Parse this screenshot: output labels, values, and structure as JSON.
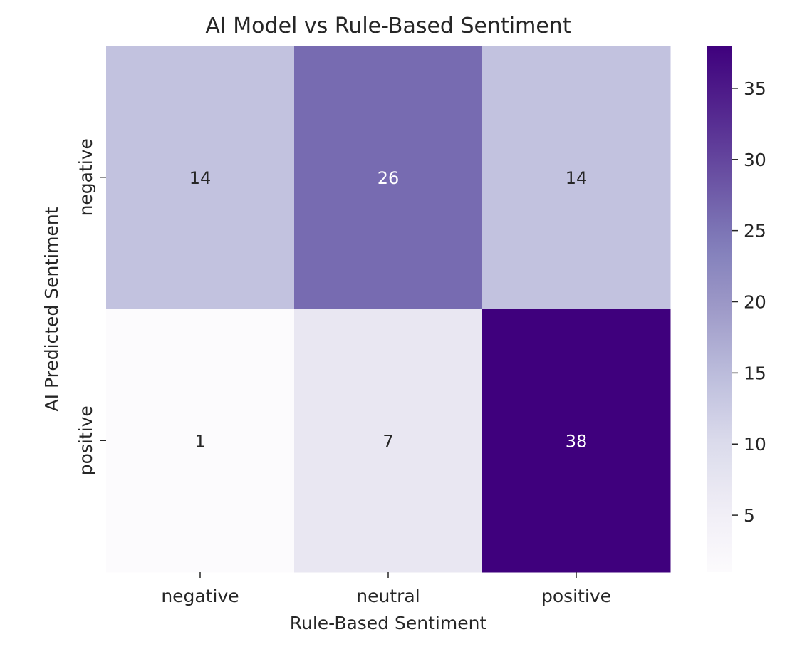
{
  "chart_data": {
    "type": "heatmap",
    "title": "AI Model vs Rule-Based Sentiment",
    "xlabel": "Rule-Based Sentiment",
    "ylabel": "AI Predicted Sentiment",
    "x_categories": [
      "negative",
      "neutral",
      "positive"
    ],
    "y_categories": [
      "negative",
      "positive"
    ],
    "values": [
      [
        14,
        26,
        14
      ],
      [
        1,
        7,
        38
      ]
    ],
    "colormap": "Purples",
    "colorbar": {
      "range": [
        1,
        38
      ],
      "ticks": [
        5,
        10,
        15,
        20,
        25,
        30,
        35
      ],
      "tick_labels": [
        "5",
        "10",
        "15",
        "20",
        "25",
        "30",
        "35"
      ]
    },
    "annotations": true,
    "grid": false
  }
}
